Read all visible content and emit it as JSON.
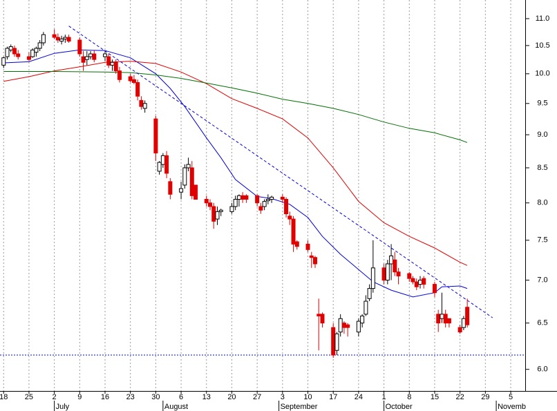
{
  "chart_data": {
    "type": "candlestick",
    "ylog": true,
    "xlim": [
      -1,
      144
    ],
    "ylim": [
      5.78,
      11.36
    ],
    "yticks": [
      {
        "value": 6.0,
        "label": "6.0"
      },
      {
        "value": 6.5,
        "label": "6.5"
      },
      {
        "value": 7.0,
        "label": "7.0"
      },
      {
        "value": 7.5,
        "label": "7.5"
      },
      {
        "value": 8.0,
        "label": "8.0"
      },
      {
        "value": 8.5,
        "label": "8.5"
      },
      {
        "value": 9.0,
        "label": "9.0"
      },
      {
        "value": 9.5,
        "label": "9.5"
      },
      {
        "value": 10.0,
        "label": "10.0"
      },
      {
        "value": 10.5,
        "label": "10.5"
      },
      {
        "value": 11.0,
        "label": "11.0"
      }
    ],
    "xticks": [
      {
        "value": 0,
        "label": "18"
      },
      {
        "value": 7,
        "label": "25"
      },
      {
        "value": 14,
        "label": "2"
      },
      {
        "value": 21,
        "label": "9"
      },
      {
        "value": 28,
        "label": "16"
      },
      {
        "value": 35,
        "label": "23"
      },
      {
        "value": 42,
        "label": "30"
      },
      {
        "value": 49,
        "label": "6"
      },
      {
        "value": 56,
        "label": "13"
      },
      {
        "value": 63,
        "label": "20"
      },
      {
        "value": 70,
        "label": "27"
      },
      {
        "value": 77,
        "label": "3"
      },
      {
        "value": 84,
        "label": "10"
      },
      {
        "value": 91,
        "label": "17"
      },
      {
        "value": 98,
        "label": "24"
      },
      {
        "value": 105,
        "label": "1"
      },
      {
        "value": 112,
        "label": "8"
      },
      {
        "value": 119,
        "label": "15"
      },
      {
        "value": 126,
        "label": "22"
      },
      {
        "value": 133,
        "label": "29"
      },
      {
        "value": 140,
        "label": "5"
      }
    ],
    "month_ticks": [
      {
        "value": 14,
        "label": "July"
      },
      {
        "value": 44,
        "label": "August"
      },
      {
        "value": 76,
        "label": "September"
      },
      {
        "value": 105,
        "label": "October"
      },
      {
        "value": 136,
        "label": "Novemb"
      }
    ],
    "grid": true,
    "up_color": "#ffffff",
    "down_color": "#e00000",
    "candles": {
      "x": [
        0,
        1,
        2,
        3,
        4,
        7,
        8,
        9,
        10,
        11,
        14,
        15,
        16,
        17,
        18,
        21,
        22,
        23,
        24,
        25,
        28,
        29,
        30,
        31,
        32,
        35,
        36,
        37,
        38,
        39,
        42,
        43,
        44,
        45,
        46,
        49,
        50,
        51,
        52,
        53,
        56,
        57,
        58,
        59,
        60,
        63,
        64,
        65,
        66,
        67,
        70,
        71,
        72,
        73,
        74,
        77,
        78,
        79,
        80,
        81,
        84,
        85,
        86,
        87,
        88,
        91,
        92,
        93,
        94,
        95,
        98,
        99,
        100,
        101,
        102,
        105,
        106,
        107,
        108,
        109,
        112,
        113,
        114,
        115,
        116,
        119,
        120,
        121,
        122,
        123,
        126,
        127,
        128
      ],
      "open": [
        10.15,
        10.3,
        10.42,
        10.45,
        10.35,
        10.3,
        10.3,
        10.38,
        10.45,
        10.55,
        10.7,
        10.65,
        10.58,
        10.62,
        10.65,
        10.6,
        10.3,
        10.25,
        10.3,
        10.35,
        10.3,
        10.3,
        10.15,
        10.2,
        10.05,
        9.95,
        9.9,
        9.85,
        9.55,
        9.42,
        9.25,
        8.45,
        8.55,
        8.68,
        8.3,
        8.15,
        8.25,
        8.5,
        8.5,
        8.25,
        8.05,
        8.0,
        7.95,
        7.78,
        7.88,
        7.88,
        7.95,
        8.05,
        8.1,
        8.1,
        8.1,
        7.95,
        7.95,
        8.03,
        8.05,
        8.08,
        8.05,
        7.82,
        7.78,
        7.48,
        7.45,
        7.3,
        7.28,
        6.6,
        6.6,
        6.45,
        6.2,
        6.4,
        6.5,
        6.48,
        6.4,
        6.5,
        6.6,
        6.78,
        6.9,
        7.15,
        7.0,
        7.2,
        7.25,
        7.1,
        7.08,
        7.02,
        6.98,
        6.95,
        7.02,
        6.95,
        6.6,
        6.55,
        6.6,
        6.55,
        6.45,
        6.45,
        6.68
      ],
      "high": [
        10.3,
        10.48,
        10.52,
        10.5,
        10.42,
        10.38,
        10.45,
        10.48,
        10.6,
        10.75,
        10.8,
        10.72,
        10.68,
        10.7,
        10.7,
        10.65,
        10.4,
        10.4,
        10.4,
        10.42,
        10.4,
        10.35,
        10.25,
        10.25,
        10.12,
        10.0,
        9.98,
        9.9,
        9.62,
        9.55,
        9.3,
        8.6,
        8.72,
        8.75,
        8.35,
        8.3,
        8.55,
        8.65,
        8.6,
        8.25,
        8.1,
        8.05,
        8.0,
        7.95,
        7.92,
        8.0,
        8.1,
        8.12,
        8.15,
        8.12,
        8.12,
        8.0,
        8.05,
        8.12,
        8.1,
        8.12,
        8.08,
        7.88,
        7.82,
        7.5,
        7.5,
        7.35,
        7.3,
        6.78,
        6.62,
        6.5,
        6.4,
        6.6,
        6.52,
        6.5,
        6.55,
        6.6,
        6.82,
        6.95,
        7.5,
        7.2,
        7.25,
        7.45,
        7.35,
        7.15,
        7.1,
        7.05,
        7.02,
        7.05,
        7.05,
        6.98,
        6.65,
        6.85,
        6.65,
        6.55,
        6.48,
        6.58,
        6.78
      ],
      "low": [
        10.1,
        10.25,
        10.38,
        10.3,
        10.25,
        10.22,
        10.28,
        10.3,
        10.4,
        10.5,
        10.62,
        10.55,
        10.52,
        10.55,
        10.55,
        10.3,
        10.05,
        10.15,
        10.25,
        10.2,
        10.22,
        10.1,
        10.05,
        10.0,
        9.85,
        9.85,
        9.82,
        9.55,
        9.4,
        9.35,
        8.6,
        8.4,
        8.5,
        8.35,
        8.05,
        8.05,
        8.2,
        8.45,
        8.05,
        8.05,
        7.95,
        7.9,
        7.65,
        7.7,
        7.82,
        7.85,
        7.9,
        7.95,
        8.0,
        8.0,
        7.95,
        7.85,
        7.9,
        7.98,
        8.0,
        8.0,
        7.8,
        7.7,
        7.35,
        7.38,
        7.35,
        7.15,
        7.15,
        6.2,
        6.45,
        6.12,
        6.15,
        6.35,
        6.38,
        6.35,
        6.35,
        6.45,
        6.58,
        6.75,
        6.85,
        6.95,
        6.95,
        7.0,
        7.05,
        6.95,
        6.98,
        6.95,
        6.88,
        6.9,
        6.9,
        6.8,
        6.4,
        6.5,
        6.45,
        6.45,
        6.38,
        6.42,
        6.45
      ],
      "close": [
        10.28,
        10.45,
        10.48,
        10.35,
        10.3,
        10.25,
        10.42,
        10.45,
        10.55,
        10.7,
        10.65,
        10.6,
        10.62,
        10.65,
        10.58,
        10.35,
        10.2,
        10.3,
        10.35,
        10.25,
        10.35,
        10.15,
        10.2,
        10.05,
        9.9,
        9.88,
        9.85,
        9.62,
        9.45,
        9.5,
        8.72,
        8.58,
        8.68,
        8.42,
        8.12,
        8.2,
        8.5,
        8.55,
        8.1,
        8.05,
        8.0,
        7.95,
        7.75,
        7.88,
        7.9,
        7.95,
        8.05,
        8.1,
        8.05,
        8.05,
        8.0,
        7.9,
        8.02,
        8.05,
        8.08,
        8.05,
        7.85,
        7.78,
        7.45,
        7.42,
        7.38,
        7.28,
        7.2,
        6.58,
        6.5,
        6.15,
        6.38,
        6.55,
        6.45,
        6.45,
        6.52,
        6.58,
        6.75,
        6.9,
        7.15,
        7.0,
        7.2,
        7.3,
        7.1,
        7.05,
        7.02,
        6.98,
        6.92,
        7.0,
        6.95,
        6.85,
        6.5,
        6.6,
        6.5,
        6.5,
        6.4,
        6.55,
        6.48
      ]
    },
    "series": [
      {
        "color": "#0000dd",
        "style": "solid",
        "x": [
          0,
          7,
          14,
          21,
          28,
          35,
          42,
          46,
          50,
          56,
          60,
          64,
          70,
          74,
          79,
          84,
          88,
          93,
          98,
          102,
          107,
          113,
          119,
          121,
          126,
          128
        ],
        "values": [
          10.19,
          10.21,
          10.36,
          10.42,
          10.41,
          10.28,
          10.0,
          9.75,
          9.45,
          8.95,
          8.65,
          8.33,
          8.09,
          8.06,
          7.98,
          7.8,
          7.55,
          7.32,
          7.13,
          6.98,
          6.88,
          6.8,
          6.85,
          6.92,
          6.93,
          6.9
        ]
      },
      {
        "color": "#e00000",
        "style": "solid",
        "x": [
          0,
          7,
          14,
          21,
          28,
          35,
          42,
          49,
          56,
          63,
          70,
          77,
          84,
          91,
          98,
          105,
          112,
          119,
          126,
          128
        ],
        "values": [
          9.87,
          9.95,
          10.05,
          10.12,
          10.2,
          10.22,
          10.18,
          10.03,
          9.83,
          9.58,
          9.42,
          9.25,
          8.95,
          8.5,
          8.02,
          7.73,
          7.55,
          7.4,
          7.22,
          7.18
        ]
      },
      {
        "color": "#007000",
        "style": "solid",
        "x": [
          0,
          14,
          28,
          35,
          42,
          49,
          56,
          63,
          70,
          77,
          84,
          91,
          98,
          105,
          112,
          119,
          126,
          128
        ],
        "values": [
          10.04,
          10.04,
          10.03,
          10.02,
          9.98,
          9.92,
          9.84,
          9.76,
          9.67,
          9.57,
          9.5,
          9.42,
          9.32,
          9.2,
          9.1,
          9.03,
          8.92,
          8.88
        ]
      },
      {
        "color": "#0000dd",
        "style": "dashed",
        "x": [
          18,
          135
        ],
        "values": [
          10.86,
          6.56
        ]
      }
    ],
    "hlines": [
      {
        "value": 6.15,
        "color": "#0000dd",
        "style": "dotted"
      }
    ]
  }
}
